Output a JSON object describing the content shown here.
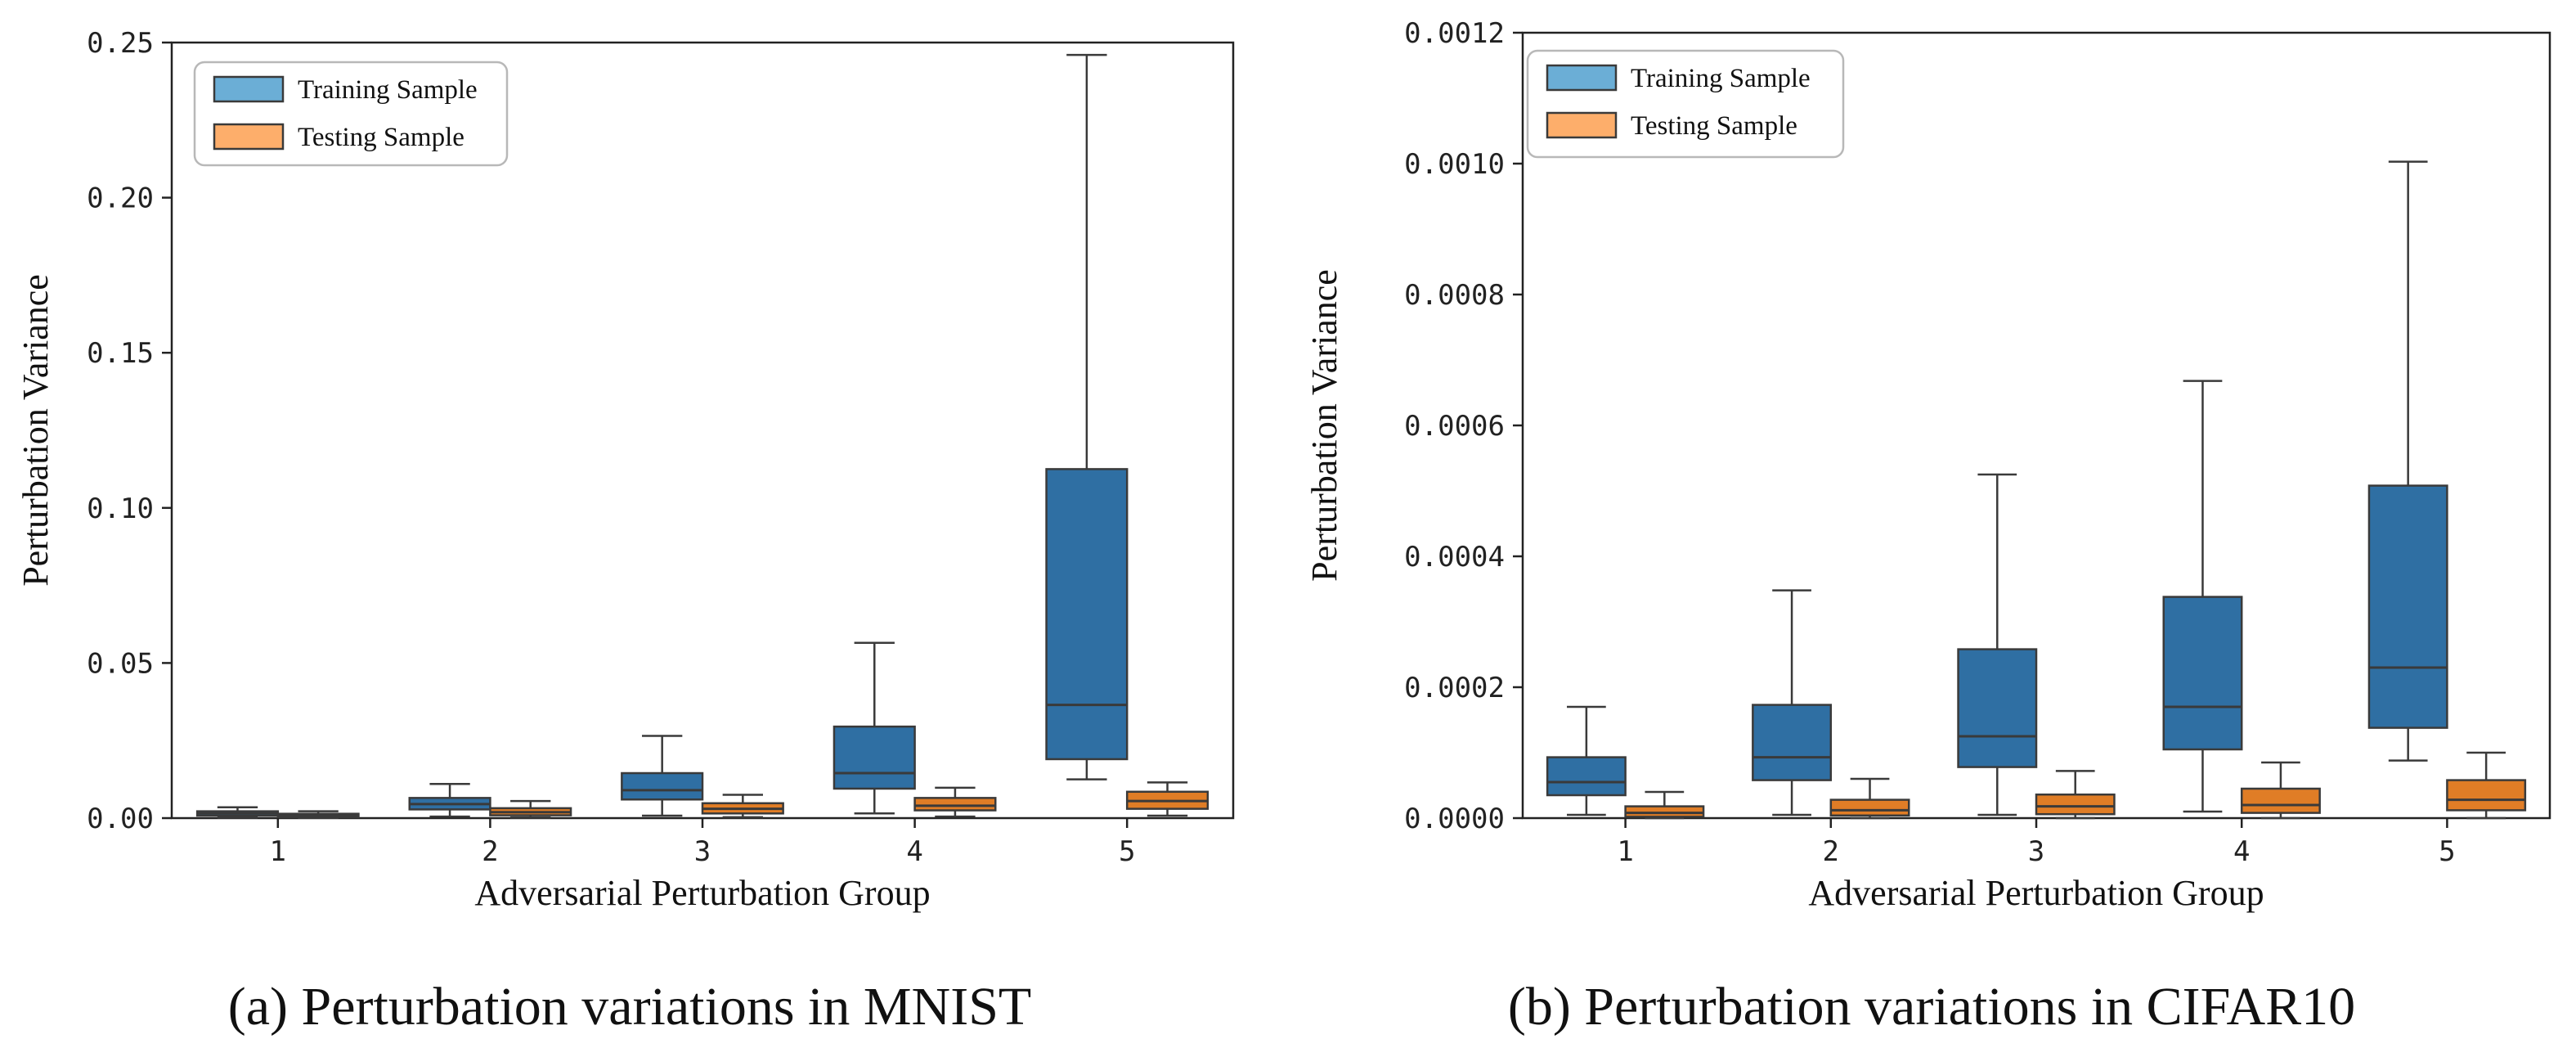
{
  "figure_captions": [
    {
      "letter": "a",
      "text": "Perturbation variations in MNIST"
    },
    {
      "letter": "b",
      "text": "Perturbation variations in CIFAR10"
    }
  ],
  "colors": {
    "training": "#2f6fa3",
    "testing": "#e07d26",
    "edge": "#3a3a3a",
    "legend_training": "#6baed6",
    "legend_testing": "#fdae6b"
  },
  "chart_data": [
    {
      "type": "box",
      "title": "",
      "xlabel": "Adversarial Perturbation Group",
      "ylabel": "Perturbation Variance",
      "categories": [
        "1",
        "2",
        "3",
        "4",
        "5"
      ],
      "ylim": [
        0,
        0.25
      ],
      "yticks": [
        0.0,
        0.05,
        0.1,
        0.15,
        0.2,
        0.25
      ],
      "ytick_labels": [
        "0.00",
        "0.05",
        "0.10",
        "0.15",
        "0.20",
        "0.25"
      ],
      "legend": [
        "Training Sample",
        "Testing Sample"
      ],
      "legend_position": "top-left",
      "series": [
        {
          "name": "Training Sample",
          "boxes": [
            {
              "min": 0.0002,
              "q1": 0.0008,
              "median": 0.0015,
              "q3": 0.0022,
              "max": 0.0035
            },
            {
              "min": 0.0005,
              "q1": 0.0028,
              "median": 0.0045,
              "q3": 0.0065,
              "max": 0.011
            },
            {
              "min": 0.0008,
              "q1": 0.006,
              "median": 0.009,
              "q3": 0.0145,
              "max": 0.0265
            },
            {
              "min": 0.0015,
              "q1": 0.0095,
              "median": 0.0145,
              "q3": 0.0295,
              "max": 0.0565
            },
            {
              "min": 0.0125,
              "q1": 0.019,
              "median": 0.0365,
              "q3": 0.1125,
              "max": 0.246
            }
          ]
        },
        {
          "name": "Testing Sample",
          "boxes": [
            {
              "min": 0.0001,
              "q1": 0.0003,
              "median": 0.0008,
              "q3": 0.0014,
              "max": 0.0022
            },
            {
              "min": 0.0002,
              "q1": 0.0009,
              "median": 0.0019,
              "q3": 0.0032,
              "max": 0.0055
            },
            {
              "min": 0.0003,
              "q1": 0.0015,
              "median": 0.003,
              "q3": 0.0048,
              "max": 0.0075
            },
            {
              "min": 0.0005,
              "q1": 0.0025,
              "median": 0.004,
              "q3": 0.0065,
              "max": 0.0098
            },
            {
              "min": 0.0008,
              "q1": 0.003,
              "median": 0.0055,
              "q3": 0.0085,
              "max": 0.0115
            }
          ]
        }
      ]
    },
    {
      "type": "box",
      "title": "",
      "xlabel": "Adversarial Perturbation Group",
      "ylabel": "Perturbation Variance",
      "categories": [
        "1",
        "2",
        "3",
        "4",
        "5"
      ],
      "ylim": [
        0,
        0.0012
      ],
      "yticks": [
        0.0,
        0.0002,
        0.0004,
        0.0006,
        0.0008,
        0.001,
        0.0012
      ],
      "ytick_labels": [
        "0.0000",
        "0.0002",
        "0.0004",
        "0.0006",
        "0.0008",
        "0.0010",
        "0.0012"
      ],
      "legend": [
        "Training Sample",
        "Testing Sample"
      ],
      "legend_position": "top-left",
      "series": [
        {
          "name": "Training Sample",
          "boxes": [
            {
              "min": 5e-06,
              "q1": 3.5e-05,
              "median": 5.5e-05,
              "q3": 9.3e-05,
              "max": 0.00017
            },
            {
              "min": 5e-06,
              "q1": 5.8e-05,
              "median": 9.3e-05,
              "q3": 0.000173,
              "max": 0.000348
            },
            {
              "min": 5e-06,
              "q1": 7.8e-05,
              "median": 0.000125,
              "q3": 0.000258,
              "max": 0.000525
            },
            {
              "min": 1e-05,
              "q1": 0.000105,
              "median": 0.00017,
              "q3": 0.000338,
              "max": 0.000668
            },
            {
              "min": 8.8e-05,
              "q1": 0.000138,
              "median": 0.00023,
              "q3": 0.000508,
              "max": 0.001003
            }
          ]
        },
        {
          "name": "Testing Sample",
          "boxes": [
            {
              "min": 0.0,
              "q1": 2e-06,
              "median": 8e-06,
              "q3": 1.8e-05,
              "max": 4e-05
            },
            {
              "min": 0.0,
              "q1": 4e-06,
              "median": 1.2e-05,
              "q3": 2.8e-05,
              "max": 6e-05
            },
            {
              "min": 0.0,
              "q1": 6e-06,
              "median": 1.8e-05,
              "q3": 3.6e-05,
              "max": 7.2e-05
            },
            {
              "min": 0.0,
              "q1": 8e-06,
              "median": 2e-05,
              "q3": 4.5e-05,
              "max": 8.5e-05
            },
            {
              "min": 0.0,
              "q1": 1.2e-05,
              "median": 2.8e-05,
              "q3": 5.8e-05,
              "max": 0.0001
            }
          ]
        }
      ]
    }
  ]
}
